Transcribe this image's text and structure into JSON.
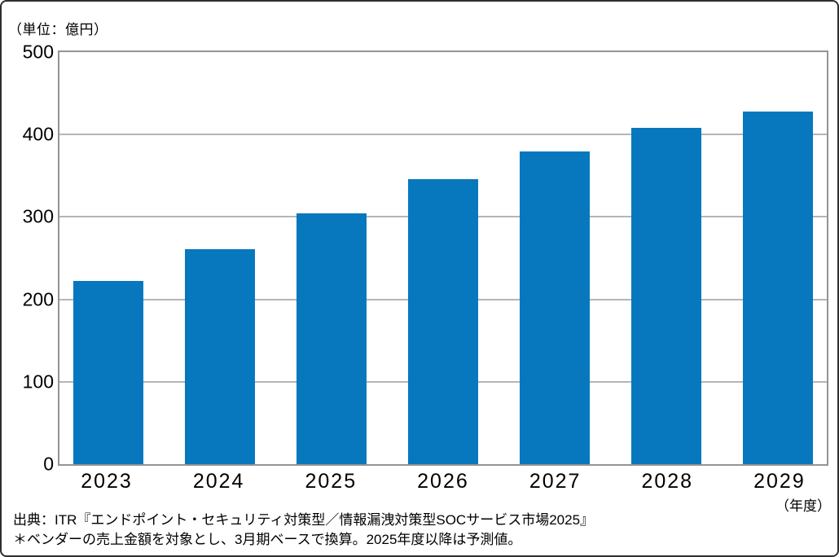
{
  "unit_label": "（単位：億円）",
  "x_axis_unit": "（年度）",
  "source": {
    "line1": "出典：ITR『エンドポイント・セキュリティ対策型／情報漏洩対策型SOCサービス市場2025』",
    "line2": "＊ベンダーの売上金額を対象とし、3月期ベースで換算。2025年度以降は予測値。"
  },
  "colors": {
    "bar": "#0878BE",
    "gridline": "#b5b5b5",
    "plot_border": "#949494",
    "text": "#000000"
  },
  "chart_data": {
    "type": "bar",
    "categories": [
      "2023",
      "2024",
      "2025",
      "2026",
      "2027",
      "2028",
      "2029"
    ],
    "values": [
      222,
      261,
      304,
      346,
      379,
      408,
      428
    ],
    "title": "",
    "xlabel": "（年度）",
    "ylabel": "（単位：億円）",
    "ylim": [
      0,
      500
    ],
    "yticks": [
      0,
      100,
      200,
      300,
      400,
      500
    ],
    "grid": true,
    "legend_position": "none",
    "bar_color": "#0878BE",
    "annotations": [
      "出典：ITR『エンドポイント・セキュリティ対策型／情報漏洩対策型SOCサービス市場2025』",
      "＊ベンダーの売上金額を対象とし、3月期ベースで換算。2025年度以降は予測値。"
    ]
  }
}
